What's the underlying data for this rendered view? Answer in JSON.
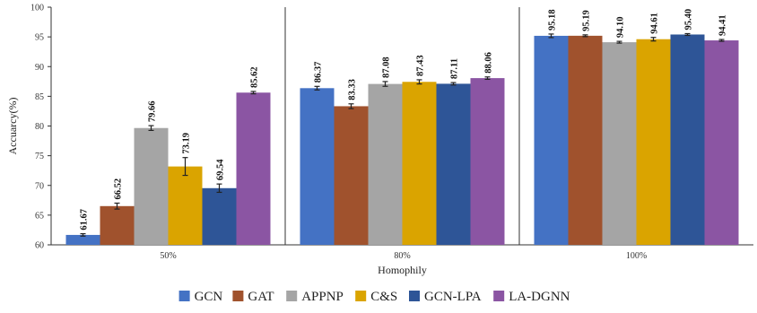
{
  "chart_data": {
    "type": "bar",
    "title": "",
    "xlabel": "Homophily",
    "ylabel": "Accuarcy(%)",
    "ylim": [
      60,
      100
    ],
    "yticks": [
      60,
      65,
      70,
      75,
      80,
      85,
      90,
      95,
      100
    ],
    "categories": [
      "50%",
      "80%",
      "100%"
    ],
    "series": [
      {
        "name": "GCN",
        "color": "#4472C4",
        "values": [
          61.67,
          86.37,
          95.18
        ],
        "errors": [
          0.2,
          0.3,
          0.3
        ]
      },
      {
        "name": "GAT",
        "color": "#A0522D",
        "values": [
          66.52,
          83.33,
          95.19
        ],
        "errors": [
          0.5,
          0.4,
          0.15
        ]
      },
      {
        "name": "APPNP",
        "color": "#A5A5A5",
        "values": [
          79.66,
          87.08,
          94.1
        ],
        "errors": [
          0.4,
          0.4,
          0.15
        ]
      },
      {
        "name": "C&S",
        "color": "#DAA400",
        "values": [
          73.19,
          87.43,
          94.61
        ],
        "errors": [
          1.5,
          0.35,
          0.3
        ]
      },
      {
        "name": "GCN-LPA",
        "color": "#2E5597",
        "values": [
          69.54,
          87.11,
          95.4
        ],
        "errors": [
          0.7,
          0.2,
          0.15
        ]
      },
      {
        "name": "LA-DGNN",
        "color": "#8B55A3",
        "values": [
          85.62,
          88.06,
          94.41
        ],
        "errors": [
          0.2,
          0.2,
          0.15
        ]
      }
    ],
    "data_labels": [
      [
        "61.67",
        "86.37",
        "95.18"
      ],
      [
        "66.52",
        "83.33",
        "95.19"
      ],
      [
        "79.66",
        "87.08",
        "94.10"
      ],
      [
        "73.19",
        "87.43",
        "94.61"
      ],
      [
        "69.54",
        "87.11",
        "95.40"
      ],
      [
        "85.62",
        "88.06",
        "94.41"
      ]
    ],
    "grid": false,
    "legend_position": "bottom"
  }
}
